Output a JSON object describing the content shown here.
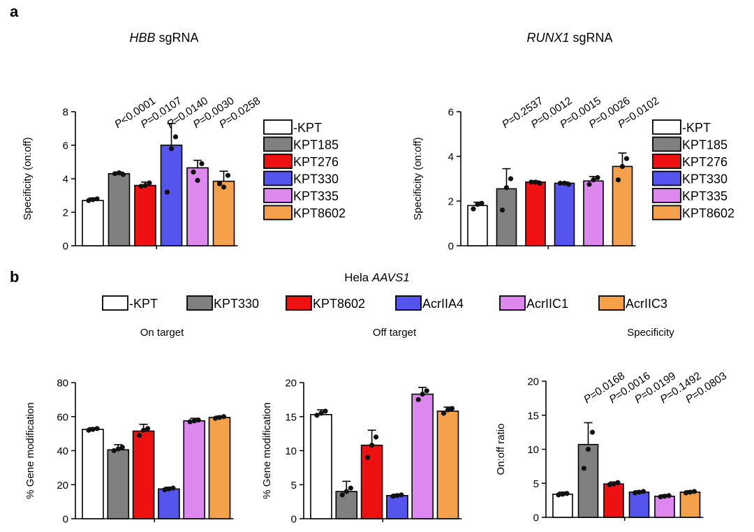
{
  "panel_a_label": "a",
  "panel_b_label": "b",
  "colors": {
    "-KPT": "#ffffff",
    "KPT185": "#808080",
    "KPT276": "#ee1111",
    "KPT330": "#5555ee",
    "KPT335": "#dd88ee",
    "KPT8602": "#f5a04a"
  },
  "legend_b": {
    "entries": [
      "-KPT",
      "KPT330",
      "KPT8602",
      "AcrIIA4",
      "AcrIIC1",
      "AcrIIC3"
    ],
    "colors": [
      "#ffffff",
      "#808080",
      "#ee1111",
      "#5555ee",
      "#dd88ee",
      "#f5a04a"
    ]
  },
  "panel_b_title": {
    "plain": "Hela ",
    "italic": "AAVS1"
  },
  "chart_data": [
    {
      "id": "hbb",
      "type": "bar",
      "title": {
        "italic": "HBB",
        "plain": " sgRNA"
      },
      "ylabel": "Specificity (on:off)",
      "ylim": [
        0,
        8
      ],
      "yticks": [
        0,
        2,
        4,
        6,
        8
      ],
      "categories": [
        "-KPT",
        "KPT185",
        "KPT276",
        "KPT330",
        "KPT335",
        "KPT8602"
      ],
      "values": [
        2.7,
        4.3,
        3.6,
        6.0,
        4.65,
        3.85
      ],
      "errors": [
        0.15,
        0.1,
        0.2,
        1.3,
        0.45,
        0.6
      ],
      "points": [
        [
          2.7,
          2.75,
          2.8
        ],
        [
          4.3,
          4.35,
          4.25
        ],
        [
          3.55,
          3.6,
          3.75
        ],
        [
          3.2,
          5.8,
          6.5
        ],
        [
          4.4,
          3.9,
          4.9
        ],
        [
          3.7,
          3.5,
          4.2
        ]
      ],
      "pvalues": [
        "P<0.0001",
        "P=0.0107",
        "P=0.0140",
        "P=0.0030",
        "P=0.0258"
      ],
      "legend": [
        "-KPT",
        "KPT185",
        "KPT276",
        "KPT330",
        "KPT335",
        "KPT8602"
      ]
    },
    {
      "id": "runx1",
      "type": "bar",
      "title": {
        "italic": "RUNX1",
        "plain": " sgRNA"
      },
      "ylabel": "Specificity (on:off)",
      "ylim": [
        0,
        6
      ],
      "yticks": [
        0,
        2,
        4,
        6
      ],
      "categories": [
        "-KPT",
        "KPT185",
        "KPT276",
        "KPT330",
        "KPT335",
        "KPT8602"
      ],
      "values": [
        1.8,
        2.55,
        2.85,
        2.8,
        2.9,
        3.55
      ],
      "errors": [
        0.15,
        0.9,
        0.05,
        0.05,
        0.2,
        0.6
      ],
      "points": [
        [
          1.65,
          1.85,
          1.9
        ],
        [
          1.6,
          2.6,
          3.0
        ],
        [
          2.85,
          2.85,
          2.8
        ],
        [
          2.8,
          2.8,
          2.75
        ],
        [
          2.75,
          2.95,
          3.05
        ],
        [
          2.95,
          3.55,
          3.9
        ]
      ],
      "pvalues": [
        "P=0.2537",
        "P=0.0012",
        "P=0.0015",
        "P=0.0026",
        "P=0.0102"
      ],
      "legend": [
        "-KPT",
        "KPT185",
        "KPT276",
        "KPT330",
        "KPT335",
        "KPT8602"
      ]
    },
    {
      "id": "on-target",
      "type": "bar",
      "title": {
        "plain": "On target"
      },
      "ylabel": "% Gene modification",
      "ylim": [
        0,
        80
      ],
      "yticks": [
        0,
        20,
        40,
        60,
        80
      ],
      "categories": [
        "-KPT",
        "KPT330",
        "KPT8602",
        "AcrIIA4",
        "AcrIIC1",
        "AcrIIC3"
      ],
      "values": [
        52.5,
        40.5,
        51.5,
        17.5,
        57.5,
        59.5
      ],
      "errors": [
        1.0,
        3.0,
        4.0,
        1.0,
        1.5,
        0.8
      ],
      "points": [
        [
          52,
          52.5,
          53
        ],
        [
          40,
          41,
          42
        ],
        [
          49,
          52,
          53
        ],
        [
          17,
          17.5,
          18
        ],
        [
          57,
          57.5,
          58
        ],
        [
          59,
          59.5,
          60
        ]
      ],
      "pvalues": []
    },
    {
      "id": "off-target",
      "type": "bar",
      "title": {
        "plain": "Off target"
      },
      "ylabel": "% Gene modification",
      "ylim": [
        0,
        20
      ],
      "yticks": [
        0,
        5,
        10,
        15,
        20
      ],
      "categories": [
        "-KPT",
        "KPT330",
        "KPT8602",
        "AcrIIA4",
        "AcrIIC1",
        "AcrIIC3"
      ],
      "values": [
        15.3,
        4.0,
        10.8,
        3.4,
        18.3,
        15.8
      ],
      "errors": [
        0.7,
        1.5,
        2.2,
        0.2,
        1.0,
        0.6
      ],
      "points": [
        [
          15.2,
          15.5,
          15.8
        ],
        [
          3.5,
          4.0,
          4.5
        ],
        [
          9.0,
          10.8,
          12.0
        ],
        [
          3.3,
          3.4,
          3.5
        ],
        [
          17.5,
          18.3,
          18.8
        ],
        [
          15.5,
          16.0,
          16.2
        ]
      ],
      "pvalues": []
    },
    {
      "id": "specificity-b",
      "type": "bar",
      "title": {
        "plain": "Specificity"
      },
      "ylabel": "On:off ratio",
      "ylim": [
        0,
        20
      ],
      "yticks": [
        0,
        5,
        10,
        15,
        20
      ],
      "categories": [
        "-KPT",
        "KPT330",
        "KPT8602",
        "AcrIIA4",
        "AcrIIC1",
        "AcrIIC3"
      ],
      "values": [
        3.4,
        10.7,
        4.9,
        3.7,
        3.1,
        3.7
      ],
      "errors": [
        0.3,
        3.2,
        0.3,
        0.2,
        0.2,
        0.2
      ],
      "points": [
        [
          3.3,
          3.4,
          3.5
        ],
        [
          7.2,
          10.0,
          12.5
        ],
        [
          4.8,
          4.9,
          5.1
        ],
        [
          3.6,
          3.7,
          3.8
        ],
        [
          3.0,
          3.1,
          3.2
        ],
        [
          3.6,
          3.7,
          3.8
        ]
      ],
      "pvalues": [
        "P=0.0168",
        "P=0.0016",
        "P=0.0199",
        "P=0.1492",
        "P=0.0803"
      ]
    }
  ]
}
